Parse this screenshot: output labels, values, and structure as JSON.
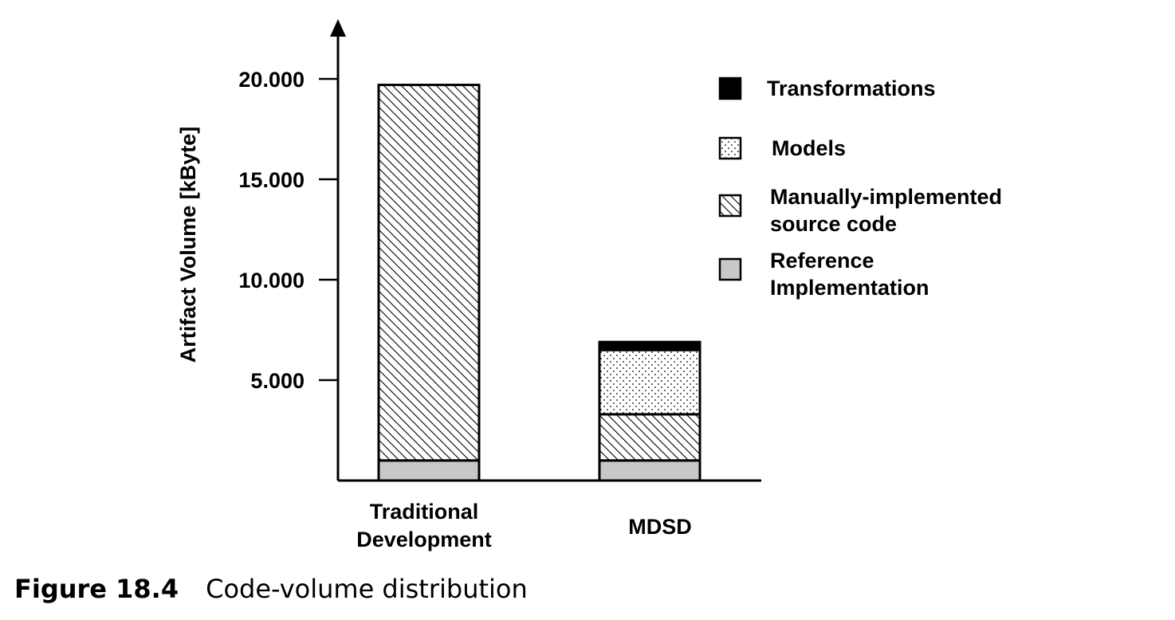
{
  "chart_data": {
    "type": "bar",
    "stacked": true,
    "ylabel": "Artifact Volume [kByte]",
    "yticks": [
      "5.000",
      "10.000",
      "15.000",
      "20.000"
    ],
    "ytick_values": [
      5000,
      10000,
      15000,
      20000
    ],
    "ylim": [
      0,
      20000
    ],
    "categories": [
      {
        "label_lines": [
          "Traditional",
          "Development"
        ]
      },
      {
        "label_lines": [
          "MDSD"
        ]
      }
    ],
    "series": [
      {
        "name_lines": [
          "Reference",
          "Implementation"
        ],
        "pattern": "gray",
        "values": [
          1000,
          1000
        ]
      },
      {
        "name_lines": [
          "Manually-implemented",
          "source code"
        ],
        "pattern": "hatch",
        "values": [
          18700,
          2300
        ]
      },
      {
        "name_lines": [
          "Models"
        ],
        "pattern": "dots",
        "values": [
          0,
          3200
        ]
      },
      {
        "name_lines": [
          "Transformations"
        ],
        "pattern": "solid",
        "values": [
          0,
          400
        ]
      }
    ],
    "legend_position": "right",
    "legend_order": [
      3,
      2,
      1,
      0
    ],
    "colors": {
      "gray": "#c8c8c8",
      "black": "#000000"
    }
  },
  "caption": {
    "number": "Figure 18.4",
    "text": "Code-volume distribution"
  }
}
